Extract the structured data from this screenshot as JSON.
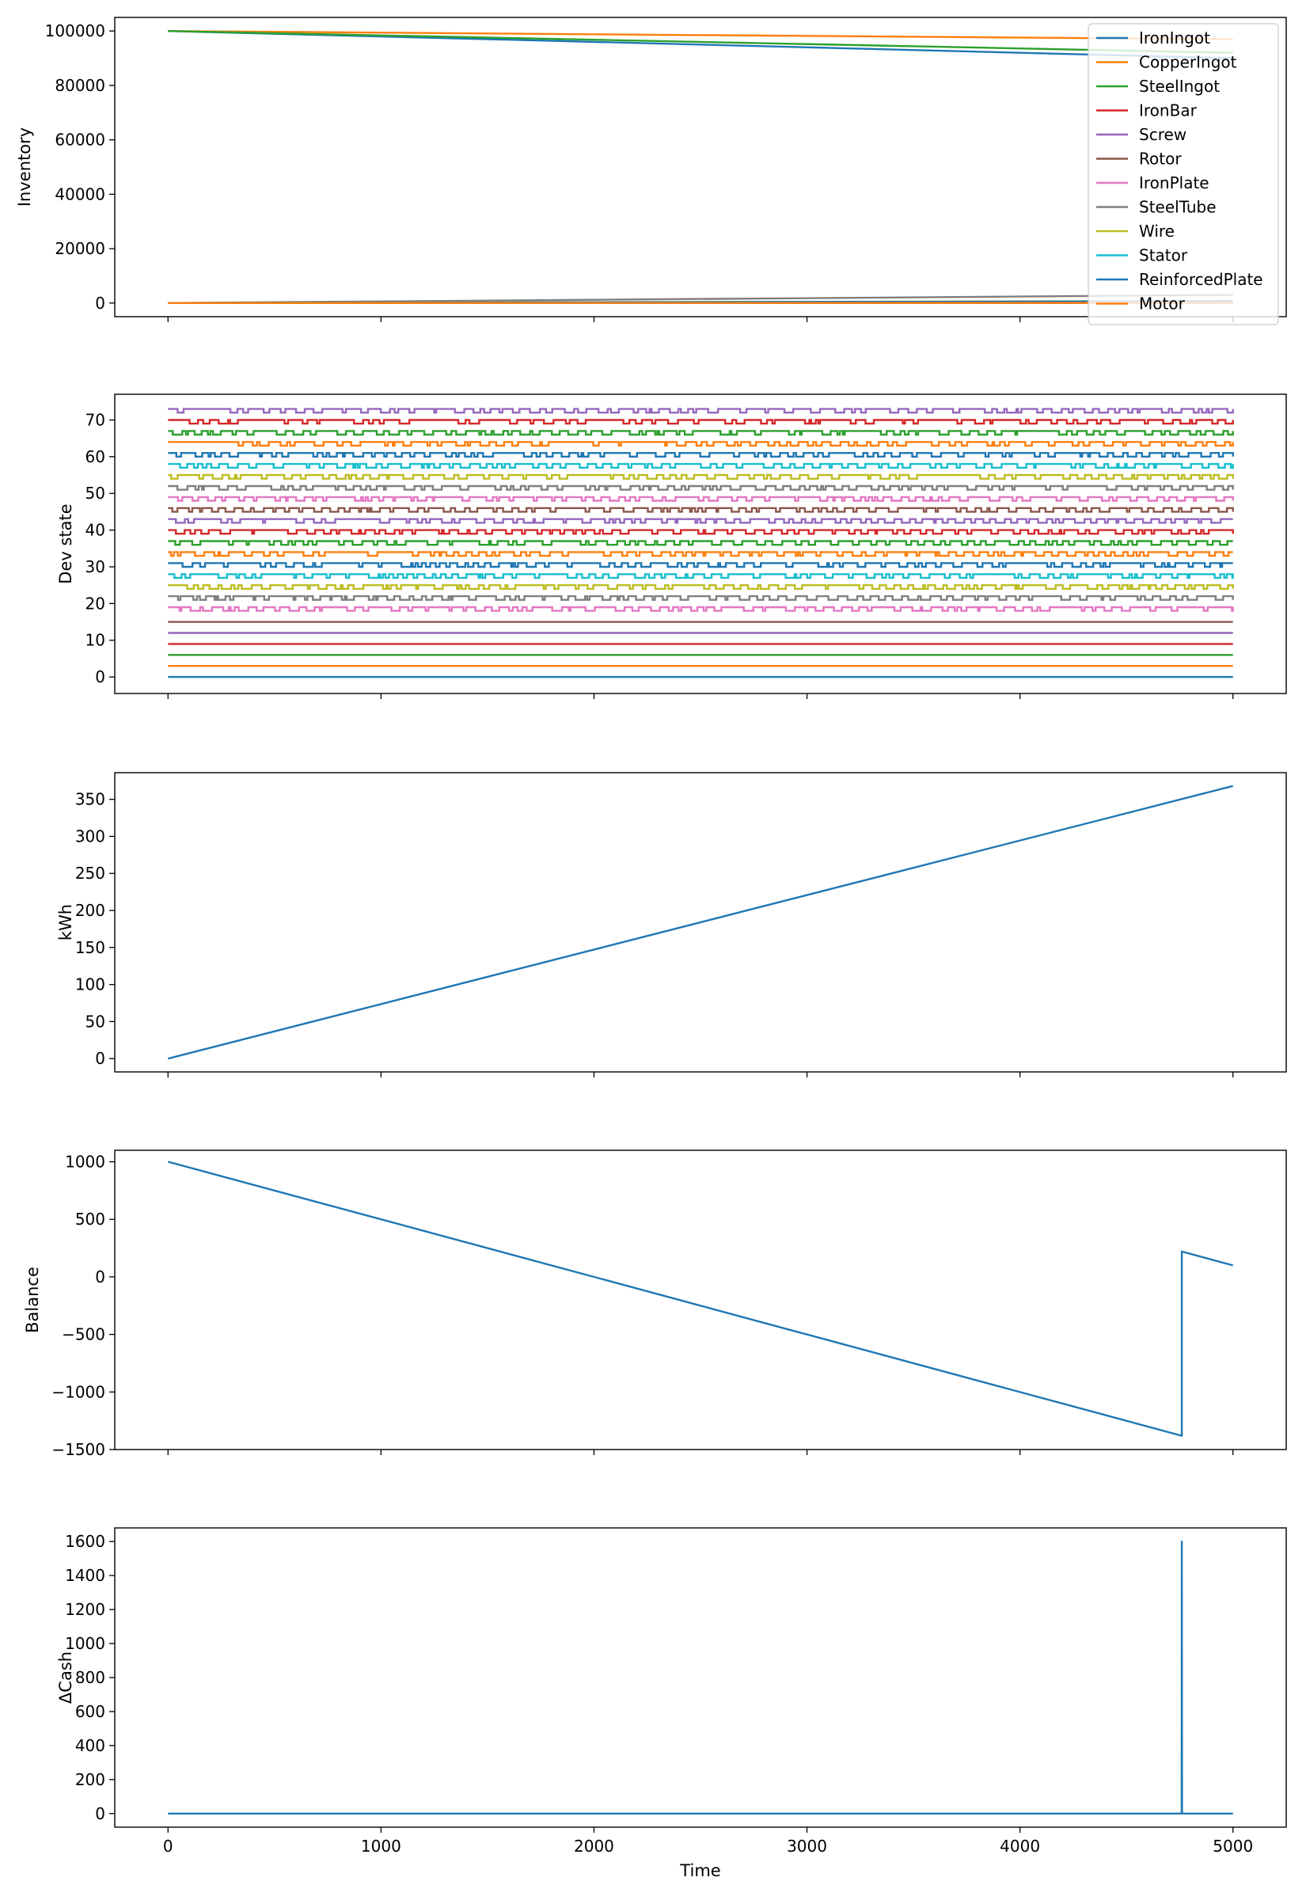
{
  "figure": {
    "xlabel": "Time",
    "x_ticks": [
      0,
      1000,
      2000,
      3000,
      4000,
      5000
    ]
  },
  "chart_data": [
    {
      "type": "line",
      "ylabel": "Inventory",
      "xlim": [
        -250,
        5250
      ],
      "ylim": [
        -5000,
        105000
      ],
      "y_ticks": [
        0,
        20000,
        40000,
        60000,
        80000,
        100000
      ],
      "legend_placement": "top-right",
      "series": [
        {
          "name": "IronIngot",
          "color": "#1f77b4",
          "x": [
            0,
            5000
          ],
          "y": [
            100000,
            90000
          ]
        },
        {
          "name": "CopperIngot",
          "color": "#ff7f0e",
          "x": [
            0,
            5000
          ],
          "y": [
            100000,
            97000
          ]
        },
        {
          "name": "SteelIngot",
          "color": "#2ca02c",
          "x": [
            0,
            5000
          ],
          "y": [
            100000,
            92000
          ]
        },
        {
          "name": "IronBar",
          "color": "#d62728",
          "x": [
            0,
            5000
          ],
          "y": [
            0,
            0
          ]
        },
        {
          "name": "Screw",
          "color": "#9467bd",
          "x": [
            0,
            5000
          ],
          "y": [
            0,
            600
          ]
        },
        {
          "name": "Rotor",
          "color": "#8c564b",
          "x": [
            0,
            5000
          ],
          "y": [
            0,
            200
          ]
        },
        {
          "name": "IronPlate",
          "color": "#e377c2",
          "x": [
            0,
            5000
          ],
          "y": [
            0,
            300
          ]
        },
        {
          "name": "SteelTube",
          "color": "#7f7f7f",
          "x": [
            0,
            5000
          ],
          "y": [
            0,
            3000
          ]
        },
        {
          "name": "Wire",
          "color": "#bcbd22",
          "x": [
            0,
            5000
          ],
          "y": [
            0,
            800
          ]
        },
        {
          "name": "Stator",
          "color": "#17becf",
          "x": [
            0,
            5000
          ],
          "y": [
            0,
            100
          ]
        },
        {
          "name": "ReinforcedPlate",
          "color": "#1f77b4",
          "x": [
            0,
            5000
          ],
          "y": [
            0,
            700
          ]
        },
        {
          "name": "Motor",
          "color": "#ff7f0e",
          "x": [
            0,
            5000
          ],
          "y": [
            0,
            50
          ]
        }
      ]
    },
    {
      "type": "line",
      "ylabel": "Dev state",
      "xlim": [
        -250,
        5250
      ],
      "ylim": [
        -4.5,
        77
      ],
      "y_ticks": [
        0,
        10,
        20,
        30,
        40,
        50,
        60,
        70
      ],
      "x_range": [
        0,
        5000
      ],
      "series": [
        {
          "color": "#1f77b4",
          "base": 0,
          "toggle": false
        },
        {
          "color": "#ff7f0e",
          "base": 3,
          "toggle": false
        },
        {
          "color": "#2ca02c",
          "base": 6,
          "toggle": false
        },
        {
          "color": "#d62728",
          "base": 9,
          "toggle": false
        },
        {
          "color": "#9467bd",
          "base": 12,
          "toggle": false
        },
        {
          "color": "#8c564b",
          "base": 15,
          "toggle": false
        },
        {
          "color": "#e377c2",
          "base": 18,
          "toggle": true
        },
        {
          "color": "#7f7f7f",
          "base": 21,
          "toggle": true
        },
        {
          "color": "#bcbd22",
          "base": 24,
          "toggle": true
        },
        {
          "color": "#17becf",
          "base": 27,
          "toggle": true
        },
        {
          "color": "#1f77b4",
          "base": 30,
          "toggle": true
        },
        {
          "color": "#ff7f0e",
          "base": 33,
          "toggle": true
        },
        {
          "color": "#2ca02c",
          "base": 36,
          "toggle": true
        },
        {
          "color": "#d62728",
          "base": 39,
          "toggle": true
        },
        {
          "color": "#9467bd",
          "base": 42,
          "toggle": true
        },
        {
          "color": "#8c564b",
          "base": 45,
          "toggle": true
        },
        {
          "color": "#e377c2",
          "base": 48,
          "toggle": true
        },
        {
          "color": "#7f7f7f",
          "base": 51,
          "toggle": true
        },
        {
          "color": "#bcbd22",
          "base": 54,
          "toggle": true
        },
        {
          "color": "#17becf",
          "base": 57,
          "toggle": true
        },
        {
          "color": "#1f77b4",
          "base": 60,
          "toggle": true
        },
        {
          "color": "#ff7f0e",
          "base": 63,
          "toggle": true
        },
        {
          "color": "#2ca02c",
          "base": 66,
          "toggle": true
        },
        {
          "color": "#d62728",
          "base": 69,
          "toggle": true
        },
        {
          "color": "#9467bd",
          "base": 72,
          "toggle": true
        }
      ]
    },
    {
      "type": "line",
      "ylabel": "kWh",
      "xlim": [
        -250,
        5250
      ],
      "ylim": [
        -18,
        386
      ],
      "y_ticks": [
        0,
        50,
        100,
        150,
        200,
        250,
        300,
        350
      ],
      "series": [
        {
          "color": "#1f77b4",
          "x": [
            0,
            5000
          ],
          "y": [
            0,
            368
          ]
        }
      ]
    },
    {
      "type": "line",
      "ylabel": "Balance",
      "xlim": [
        -250,
        5250
      ],
      "ylim": [
        -1500,
        1100
      ],
      "y_ticks": [
        -1500,
        -1000,
        -500,
        0,
        500,
        1000
      ],
      "series": [
        {
          "color": "#1f77b4",
          "x": [
            0,
            4760,
            4760,
            5000
          ],
          "y": [
            1000,
            -1380,
            220,
            100
          ]
        }
      ]
    },
    {
      "type": "line",
      "ylabel": "ΔCash",
      "xlim": [
        -250,
        5250
      ],
      "ylim": [
        -80,
        1680
      ],
      "y_ticks": [
        0,
        200,
        400,
        600,
        800,
        1000,
        1200,
        1400,
        1600
      ],
      "series": [
        {
          "color": "#1f77b4",
          "x": [
            0,
            4759,
            4760,
            4761,
            5000
          ],
          "y": [
            0,
            0,
            1600,
            0,
            0
          ]
        }
      ]
    }
  ]
}
